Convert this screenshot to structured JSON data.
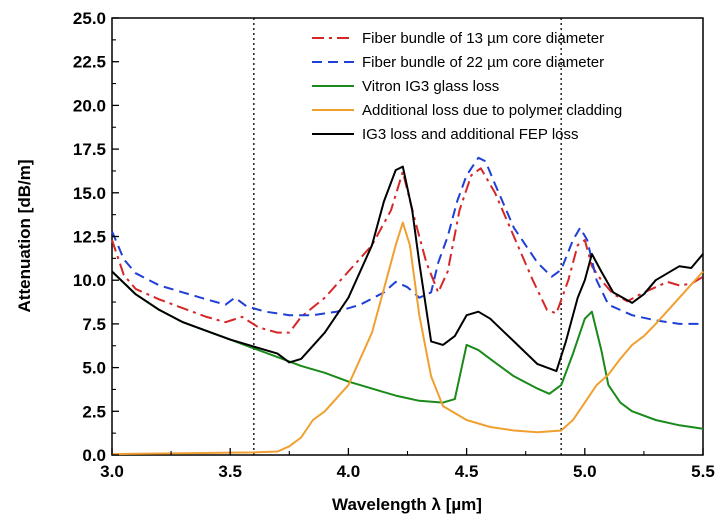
{
  "chart_data": {
    "type": "line",
    "title": "",
    "xlabel": "Wavelength λ [µm]",
    "ylabel": "Attenuation [dB/m]",
    "xlim": [
      3.0,
      5.5
    ],
    "ylim": [
      0.0,
      25.0
    ],
    "xticks": [
      "3.0",
      "3.5",
      "4.0",
      "4.5",
      "5.0",
      "5.5"
    ],
    "yticks": [
      "0.0",
      "2.5",
      "5.0",
      "7.5",
      "10.0",
      "12.5",
      "15.0",
      "17.5",
      "20.0",
      "22.5",
      "25.0"
    ],
    "grid": false,
    "legend_position": "top-right",
    "vlines": [
      3.6,
      4.9
    ],
    "series": [
      {
        "name": "Fiber bundle of 13 µm core diameter",
        "color": "#d62728",
        "style": "dash-dot",
        "x": [
          3.0,
          3.05,
          3.1,
          3.2,
          3.3,
          3.4,
          3.48,
          3.55,
          3.62,
          3.7,
          3.75,
          3.8,
          3.9,
          4.0,
          4.1,
          4.18,
          4.23,
          4.28,
          4.33,
          4.38,
          4.42,
          4.47,
          4.52,
          4.56,
          4.62,
          4.7,
          4.78,
          4.84,
          4.88,
          4.93,
          4.97,
          5.0,
          5.03,
          5.07,
          5.12,
          5.18,
          5.25,
          5.3,
          5.35,
          5.4,
          5.45,
          5.5
        ],
        "y": [
          12.3,
          10.3,
          9.5,
          8.9,
          8.4,
          7.9,
          7.6,
          7.9,
          7.3,
          7.0,
          7.0,
          7.9,
          9.0,
          10.5,
          12.0,
          14.0,
          16.2,
          13.5,
          11.0,
          9.3,
          10.5,
          14.0,
          16.0,
          16.4,
          15.0,
          12.5,
          10.0,
          8.3,
          8.1,
          10.0,
          12.0,
          12.3,
          10.8,
          10.0,
          9.2,
          8.8,
          9.3,
          9.6,
          9.9,
          9.7,
          9.8,
          10.2
        ]
      },
      {
        "name": "Fiber bundle of 22 µm core diameter",
        "color": "#1f3fd6",
        "style": "dashed",
        "x": [
          3.0,
          3.05,
          3.1,
          3.2,
          3.3,
          3.4,
          3.48,
          3.52,
          3.57,
          3.65,
          3.75,
          3.85,
          3.95,
          4.05,
          4.15,
          4.2,
          4.25,
          4.3,
          4.35,
          4.38,
          4.42,
          4.46,
          4.5,
          4.55,
          4.58,
          4.62,
          4.7,
          4.8,
          4.86,
          4.9,
          4.95,
          4.98,
          5.01,
          5.05,
          5.1,
          5.2,
          5.3,
          5.4,
          5.5
        ],
        "y": [
          12.8,
          11.2,
          10.4,
          9.7,
          9.3,
          8.9,
          8.6,
          9.0,
          8.5,
          8.2,
          8.0,
          8.0,
          8.2,
          8.6,
          9.3,
          9.9,
          9.6,
          9.0,
          9.3,
          11.0,
          12.5,
          14.5,
          16.0,
          17.0,
          16.8,
          15.5,
          13.0,
          11.0,
          10.2,
          10.6,
          12.3,
          13.0,
          12.3,
          10.0,
          8.6,
          8.0,
          7.7,
          7.5,
          7.5
        ]
      },
      {
        "name": "Vitron IG3 glass loss",
        "color": "#1a8a1a",
        "style": "solid",
        "x": [
          3.0,
          3.1,
          3.2,
          3.3,
          3.4,
          3.5,
          3.6,
          3.7,
          3.8,
          3.9,
          4.0,
          4.1,
          4.2,
          4.3,
          4.4,
          4.45,
          4.5,
          4.55,
          4.6,
          4.7,
          4.8,
          4.85,
          4.9,
          4.95,
          5.0,
          5.03,
          5.07,
          5.1,
          5.15,
          5.2,
          5.3,
          5.4,
          5.5
        ],
        "y": [
          10.5,
          9.2,
          8.3,
          7.6,
          7.1,
          6.6,
          6.1,
          5.6,
          5.1,
          4.7,
          4.2,
          3.8,
          3.4,
          3.1,
          3.0,
          3.2,
          6.3,
          6.0,
          5.5,
          4.5,
          3.8,
          3.5,
          4.0,
          5.8,
          7.8,
          8.2,
          6.0,
          4.0,
          3.0,
          2.5,
          2.0,
          1.7,
          1.5
        ]
      },
      {
        "name": "Additional loss due to polymer cladding",
        "color": "#f0a030",
        "style": "solid",
        "x": [
          3.0,
          3.3,
          3.6,
          3.7,
          3.75,
          3.8,
          3.85,
          3.9,
          4.0,
          4.1,
          4.15,
          4.2,
          4.23,
          4.26,
          4.3,
          4.35,
          4.4,
          4.5,
          4.6,
          4.7,
          4.8,
          4.9,
          4.95,
          5.0,
          5.05,
          5.1,
          5.15,
          5.2,
          5.25,
          5.3,
          5.4,
          5.5
        ],
        "y": [
          0.05,
          0.1,
          0.15,
          0.2,
          0.5,
          1.0,
          2.0,
          2.5,
          4.0,
          7.0,
          9.5,
          12.0,
          13.3,
          12.0,
          8.0,
          4.5,
          2.8,
          2.0,
          1.6,
          1.4,
          1.3,
          1.4,
          2.0,
          3.0,
          4.0,
          4.6,
          5.5,
          6.3,
          6.8,
          7.5,
          9.0,
          10.5
        ]
      },
      {
        "name": "IG3 loss and additional FEP loss",
        "color": "#000000",
        "style": "solid",
        "x": [
          3.0,
          3.1,
          3.2,
          3.3,
          3.4,
          3.5,
          3.6,
          3.7,
          3.75,
          3.8,
          3.9,
          4.0,
          4.1,
          4.15,
          4.2,
          4.23,
          4.27,
          4.3,
          4.35,
          4.4,
          4.45,
          4.5,
          4.55,
          4.6,
          4.7,
          4.8,
          4.88,
          4.92,
          4.97,
          5.0,
          5.03,
          5.07,
          5.12,
          5.2,
          5.25,
          5.3,
          5.4,
          5.45,
          5.5
        ],
        "y": [
          10.5,
          9.2,
          8.3,
          7.6,
          7.1,
          6.6,
          6.2,
          5.8,
          5.3,
          5.5,
          7.0,
          9.0,
          12.0,
          14.5,
          16.3,
          16.5,
          14.0,
          11.0,
          6.5,
          6.3,
          6.8,
          8.0,
          8.2,
          7.8,
          6.5,
          5.2,
          4.8,
          6.5,
          9.0,
          10.0,
          11.5,
          10.5,
          9.3,
          8.7,
          9.2,
          10.0,
          10.8,
          10.7,
          11.5
        ]
      }
    ]
  }
}
